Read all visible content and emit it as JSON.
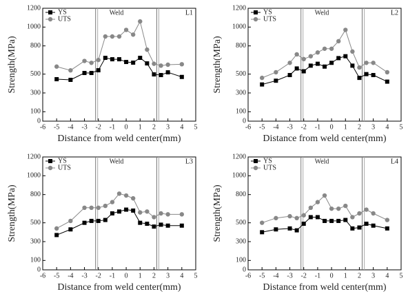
{
  "chart_data": [
    {
      "type": "line",
      "panel": "L1",
      "annotation": "Weld",
      "xlabel": "Distance from weld center(mm)",
      "ylabel": "Strength(MPa)",
      "x": [
        -5,
        -4,
        -3,
        -2.5,
        -2,
        -1.5,
        -1,
        -0.5,
        0,
        0.5,
        1,
        1.5,
        2,
        2.5,
        3,
        4
      ],
      "series": [
        {
          "name": "YS",
          "color": "#000000",
          "marker": "square",
          "values": [
            446,
            439,
            512,
            512,
            541,
            673,
            658,
            658,
            629,
            622,
            673,
            614,
            497,
            490,
            519,
            470
          ]
        },
        {
          "name": "UTS",
          "color": "#888888",
          "marker": "circle",
          "values": [
            580,
            540,
            640,
            620,
            650,
            900,
            900,
            900,
            970,
            920,
            1060,
            760,
            610,
            590,
            600,
            605
          ]
        }
      ],
      "vlines": [
        -2.2,
        2.2
      ],
      "xlim": [
        -6,
        5
      ],
      "ylim": [
        0,
        1200
      ],
      "xticks": [
        -6,
        -5,
        -4,
        -3,
        -2,
        -1,
        0,
        1,
        2,
        3,
        4,
        5
      ],
      "yticks": [
        0,
        100,
        300,
        500,
        800,
        1000,
        1200
      ],
      "grid": false,
      "legend": "upper left"
    },
    {
      "type": "line",
      "panel": "L2",
      "annotation": "Weld",
      "xlabel": "Distance from weld center(mm)",
      "ylabel": "Strength(MPa)",
      "x": [
        -5,
        -4,
        -3,
        -2.5,
        -2,
        -1.5,
        -1,
        -0.5,
        0,
        0.5,
        1,
        1.5,
        2,
        2.5,
        3,
        4
      ],
      "series": [
        {
          "name": "YS",
          "color": "#000000",
          "marker": "square",
          "values": [
            390,
            430,
            490,
            560,
            530,
            590,
            610,
            580,
            620,
            670,
            690,
            590,
            460,
            500,
            490,
            420
          ]
        },
        {
          "name": "UTS",
          "color": "#888888",
          "marker": "circle",
          "values": [
            460,
            520,
            620,
            710,
            660,
            690,
            730,
            770,
            770,
            850,
            970,
            740,
            570,
            620,
            620,
            520
          ]
        }
      ],
      "vlines": [
        -2.2,
        2.2
      ],
      "xlim": [
        -6,
        5
      ],
      "ylim": [
        0,
        1200
      ],
      "xticks": [
        -6,
        -5,
        -4,
        -3,
        -2,
        -1,
        0,
        1,
        2,
        3,
        4,
        5
      ],
      "yticks": [
        0,
        100,
        300,
        500,
        800,
        1000,
        1200
      ],
      "grid": false,
      "legend": "upper left"
    },
    {
      "type": "line",
      "panel": "L3",
      "annotation": "Weld",
      "xlabel": "Distance from weld center(mm)",
      "ylabel": "Strength(MPa)",
      "x": [
        -5,
        -4,
        -3,
        -2.5,
        -2,
        -1.5,
        -1,
        -0.5,
        0,
        0.5,
        1,
        1.5,
        2,
        2.5,
        3,
        4
      ],
      "series": [
        {
          "name": "YS",
          "color": "#000000",
          "marker": "square",
          "values": [
            370,
            430,
            500,
            520,
            520,
            530,
            600,
            620,
            640,
            630,
            500,
            490,
            460,
            480,
            470,
            470
          ]
        },
        {
          "name": "UTS",
          "color": "#888888",
          "marker": "circle",
          "values": [
            440,
            520,
            660,
            660,
            660,
            680,
            720,
            810,
            790,
            760,
            610,
            620,
            560,
            600,
            590,
            590
          ]
        }
      ],
      "vlines": [
        -2.2,
        2.2
      ],
      "xlim": [
        -6,
        5
      ],
      "ylim": [
        0,
        1200
      ],
      "xticks": [
        -6,
        -5,
        -4,
        -3,
        -2,
        -1,
        0,
        1,
        2,
        3,
        4,
        5
      ],
      "yticks": [
        0,
        100,
        300,
        500,
        800,
        1000,
        1200
      ],
      "grid": false,
      "legend": "upper left"
    },
    {
      "type": "line",
      "panel": "L4",
      "annotation": "Weld",
      "xlabel": "Distance from weld center(mm)",
      "ylabel": "Strength(MPa)",
      "x": [
        -5,
        -4,
        -3,
        -2.5,
        -2,
        -1.5,
        -1,
        -0.5,
        0,
        0.5,
        1,
        1.5,
        2,
        2.5,
        3,
        4
      ],
      "series": [
        {
          "name": "YS",
          "color": "#000000",
          "marker": "square",
          "values": [
            400,
            430,
            440,
            420,
            490,
            560,
            560,
            520,
            520,
            520,
            530,
            440,
            450,
            490,
            470,
            440
          ]
        },
        {
          "name": "UTS",
          "color": "#888888",
          "marker": "circle",
          "values": [
            500,
            550,
            570,
            550,
            580,
            660,
            720,
            790,
            650,
            650,
            680,
            560,
            600,
            640,
            600,
            530
          ]
        }
      ],
      "vlines": [
        -2.2,
        2.2
      ],
      "xlim": [
        -6,
        5
      ],
      "ylim": [
        0,
        1200
      ],
      "xticks": [
        -6,
        -5,
        -4,
        -3,
        -2,
        -1,
        0,
        1,
        2,
        3,
        4,
        5
      ],
      "yticks": [
        0,
        100,
        300,
        500,
        800,
        1000,
        1200
      ],
      "grid": false,
      "legend": "upper left"
    }
  ]
}
